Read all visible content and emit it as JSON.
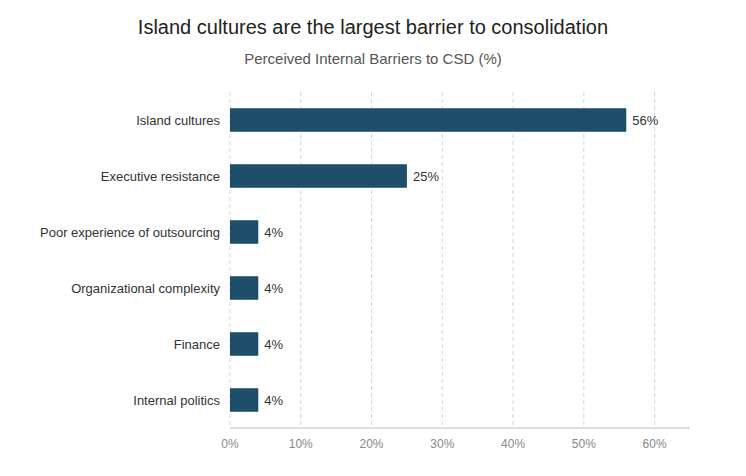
{
  "chart_data": {
    "type": "bar",
    "orientation": "horizontal",
    "title": "Island cultures are the largest barrier to consolidation",
    "subtitle": "Perceived Internal Barriers to CSD (%)",
    "categories": [
      "Internal politics",
      "Finance",
      "Organizational complexity",
      "Poor experience of outsourcing",
      "Executive resistance",
      "Island cultures"
    ],
    "values": [
      4,
      4,
      4,
      4,
      25,
      56
    ],
    "value_labels": [
      "4%",
      "4%",
      "4%",
      "4%",
      "25%",
      "56%"
    ],
    "data_labels": true,
    "color": "#1F4E6B",
    "xlim": [
      0,
      65
    ],
    "xticks": [
      {
        "value": 0,
        "label": "0%"
      },
      {
        "value": 10,
        "label": "10%"
      },
      {
        "value": 20,
        "label": "20%"
      },
      {
        "value": 30,
        "label": "30%"
      },
      {
        "value": 40,
        "label": "40%"
      },
      {
        "value": 50,
        "label": "50%"
      },
      {
        "value": 60,
        "label": "60%"
      }
    ],
    "grid": true
  }
}
